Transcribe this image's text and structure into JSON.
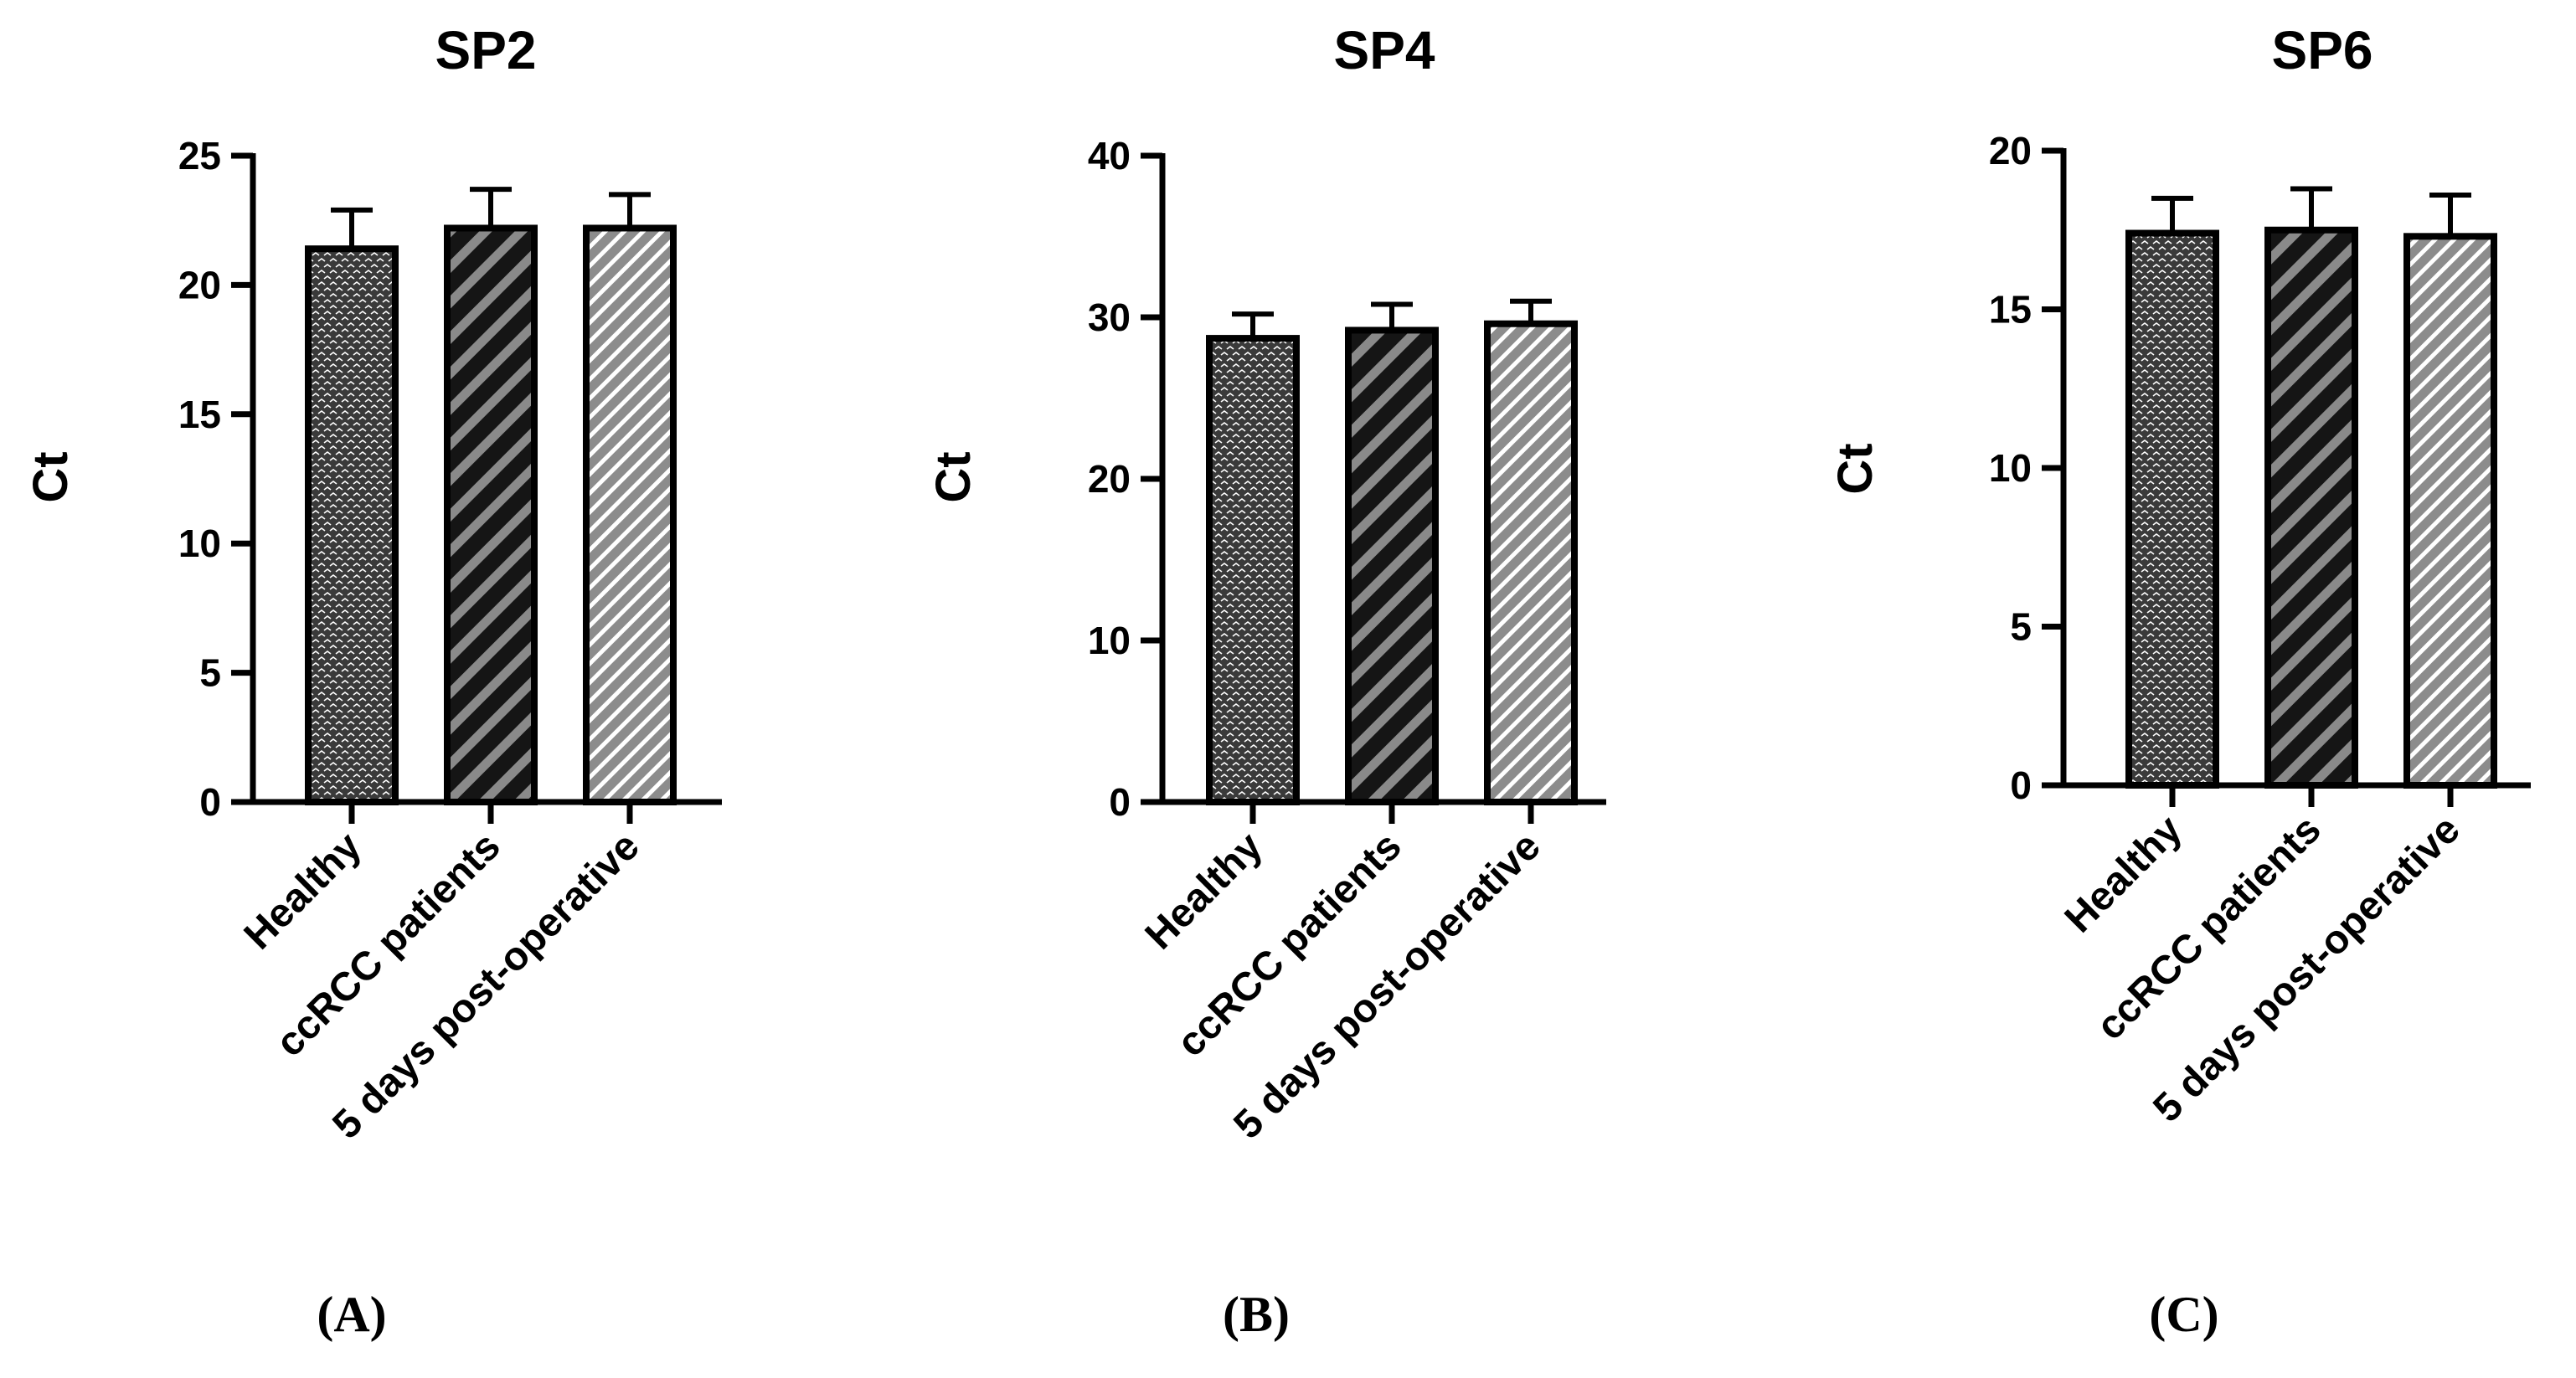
{
  "chart_data": [
    {
      "type": "bar",
      "title": "SP2",
      "ylabel": "Ct",
      "xlabel": "",
      "categories": [
        "Healthy",
        "ccRCC patients",
        "5 days post-operative"
      ],
      "values": [
        21.4,
        22.2,
        22.2
      ],
      "error_upper": [
        22.9,
        23.7,
        23.5
      ],
      "ylim": [
        0,
        25
      ],
      "yticks": [
        0,
        5,
        10,
        15,
        20,
        25
      ],
      "panel_label": "(A)"
    },
    {
      "type": "bar",
      "title": "SP4",
      "ylabel": "Ct",
      "xlabel": "",
      "categories": [
        "Healthy",
        "ccRCC patients",
        "5 days post-operative"
      ],
      "values": [
        28.7,
        29.2,
        29.6
      ],
      "error_upper": [
        30.2,
        30.8,
        31.0
      ],
      "ylim": [
        0,
        40
      ],
      "yticks": [
        0,
        10,
        20,
        30,
        40
      ],
      "panel_label": "(B)"
    },
    {
      "type": "bar",
      "title": "SP6",
      "ylabel": "Ct",
      "xlabel": "",
      "categories": [
        "Healthy",
        "ccRCC patients",
        "5 days post-operative"
      ],
      "values": [
        17.4,
        17.5,
        17.3
      ],
      "error_upper": [
        18.5,
        18.8,
        18.6
      ],
      "ylim": [
        0,
        20
      ],
      "yticks": [
        0,
        5,
        10,
        15,
        20
      ],
      "panel_label": "(C)"
    }
  ],
  "colors": {
    "axis": "#000000",
    "bar_dark": "#3a3a3a",
    "bar_stripe_bg": "#1a1a1a",
    "bar_stripe_fg": "#8a8a8a",
    "bar_light_bg": "#8c8c8c",
    "bar_light_fg": "#ffffff"
  },
  "patterns": [
    "dots",
    "bold-stripes",
    "fine-stripes"
  ]
}
